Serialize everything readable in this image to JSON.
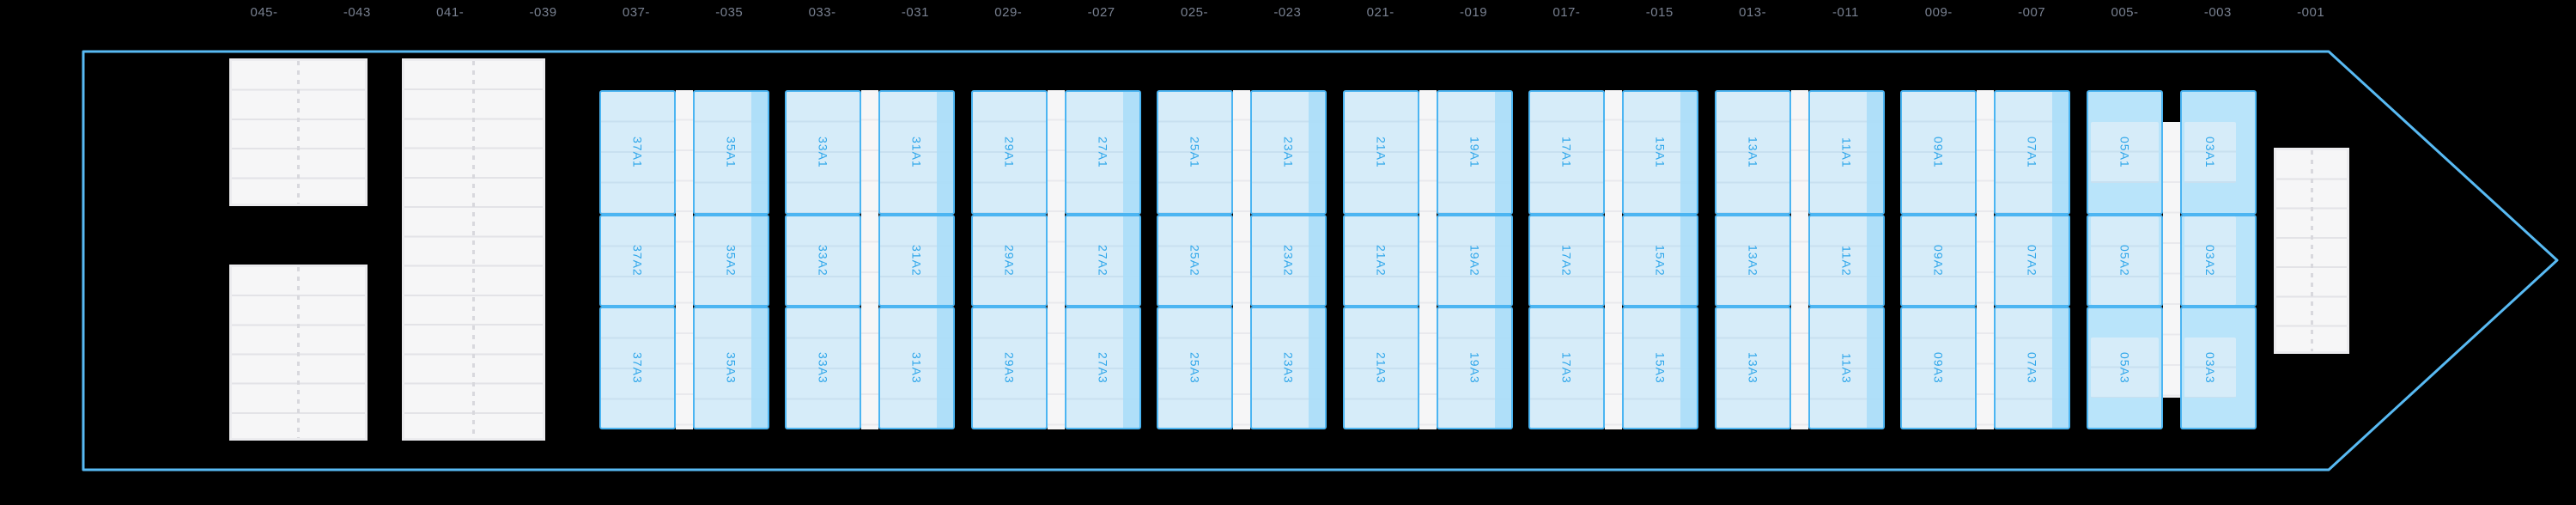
{
  "colors": {
    "background": "#000000",
    "hull_outline": "#58baf3",
    "axis_label": "#788090",
    "cell_border": "#4cb5f2",
    "cell_fill": "#d6ecf9",
    "cell_fill_medium": "#b9e4fa",
    "cell_band": "#abdef8",
    "cell_faint_line": "#c8e0f0",
    "cell_label": "#2ea6ea",
    "block_fill": "#f6f6f7",
    "block_line": "#e3e3e7",
    "block_border": "#ececef",
    "block_dash": "#d8d8dd",
    "strip_line": "#e9e9ed"
  },
  "axis": {
    "labels": [
      "045-",
      "-043",
      "041-",
      "-039",
      "037-",
      "-035",
      "033-",
      "-031",
      "029-",
      "-027",
      "025-",
      "-023",
      "021-",
      "-019",
      "017-",
      "-015",
      "013-",
      "-011",
      "009-",
      "-007",
      "005-",
      "-003",
      "-001"
    ]
  },
  "bays": [
    {
      "style": "standard",
      "left_bay": "37",
      "right_bay": "35",
      "cells_left": [
        "37A1",
        "37A2",
        "37A3"
      ],
      "cells_right": [
        "35A1",
        "35A2",
        "35A3"
      ]
    },
    {
      "style": "standard",
      "left_bay": "33",
      "right_bay": "31",
      "cells_left": [
        "33A1",
        "33A2",
        "33A3"
      ],
      "cells_right": [
        "31A1",
        "31A2",
        "31A3"
      ]
    },
    {
      "style": "standard",
      "left_bay": "29",
      "right_bay": "27",
      "cells_left": [
        "29A1",
        "29A2",
        "29A3"
      ],
      "cells_right": [
        "27A1",
        "27A2",
        "27A3"
      ]
    },
    {
      "style": "standard",
      "left_bay": "25",
      "right_bay": "23",
      "cells_left": [
        "25A1",
        "25A2",
        "25A3"
      ],
      "cells_right": [
        "23A1",
        "23A2",
        "23A3"
      ]
    },
    {
      "style": "standard",
      "left_bay": "21",
      "right_bay": "19",
      "cells_left": [
        "21A1",
        "21A2",
        "21A3"
      ],
      "cells_right": [
        "19A1",
        "19A2",
        "19A3"
      ]
    },
    {
      "style": "standard",
      "left_bay": "17",
      "right_bay": "15",
      "cells_left": [
        "17A1",
        "17A2",
        "17A3"
      ],
      "cells_right": [
        "15A1",
        "15A2",
        "15A3"
      ]
    },
    {
      "style": "standard",
      "left_bay": "13",
      "right_bay": "11",
      "cells_left": [
        "13A1",
        "13A2",
        "13A3"
      ],
      "cells_right": [
        "11A1",
        "11A2",
        "11A3"
      ]
    },
    {
      "style": "standard",
      "left_bay": "09",
      "right_bay": "07",
      "cells_left": [
        "09A1",
        "09A2",
        "09A3"
      ],
      "cells_right": [
        "07A1",
        "07A2",
        "07A3"
      ]
    },
    {
      "style": "offset",
      "left_bay": "05",
      "right_bay": "03",
      "cells_left": [
        "05A1",
        "05A2",
        "05A3"
      ],
      "cells_right": [
        "03A1",
        "03A2",
        "03A3"
      ]
    }
  ]
}
